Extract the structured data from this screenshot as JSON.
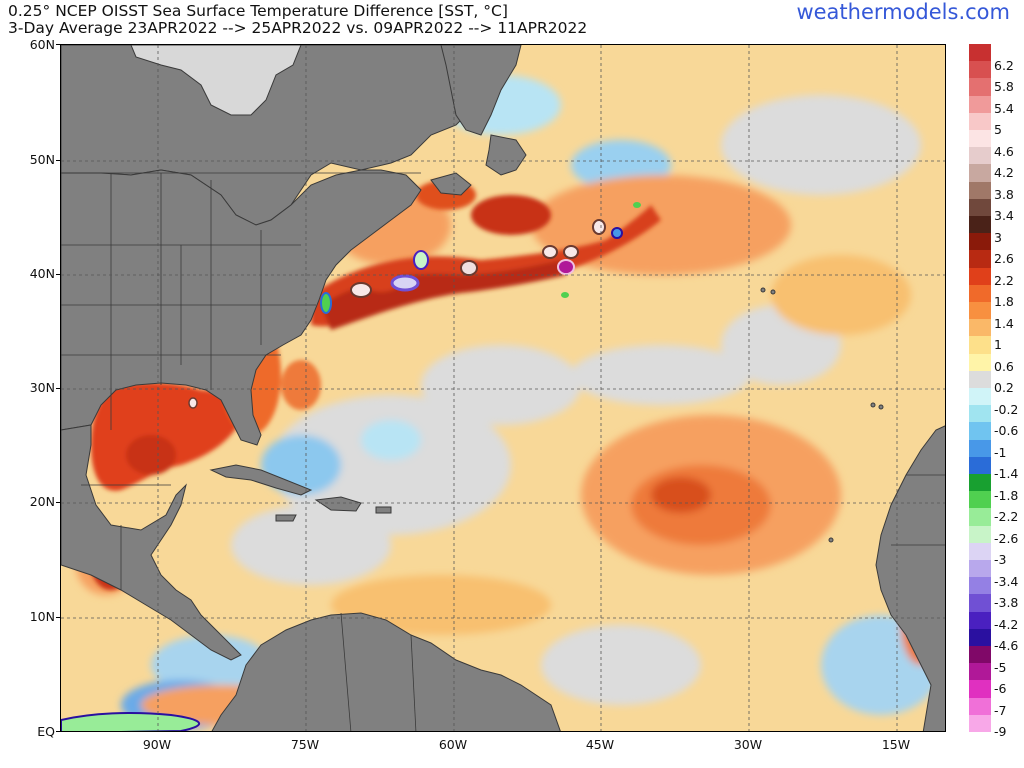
{
  "header": {
    "title_line1": "0.25° NCEP OISST Sea Surface Temperature Difference [SST, °C]",
    "title_line2": "3-Day Average 23APR2022 --> 25APR2022  vs. 09APR2022 --> 11APR2022",
    "brand": "weathermodels.com"
  },
  "axes": {
    "lat_labels": [
      "60N",
      "50N",
      "40N",
      "30N",
      "20N",
      "10N",
      "EQ"
    ],
    "lon_labels": [
      "90W",
      "75W",
      "60W",
      "45W",
      "30W",
      "15W"
    ]
  },
  "colors": {
    "land": "#808080",
    "land_border": "#3a3a3a",
    "neutral": "#dcdcdc",
    "grid": "#555555",
    "brand": "#3558d8"
  },
  "colorbar": {
    "labels": [
      "6.2",
      "5.8",
      "5.4",
      "5",
      "4.6",
      "4.2",
      "3.8",
      "3.4",
      "3",
      "2.6",
      "2.2",
      "1.8",
      "1.4",
      "1",
      "0.6",
      "0.2",
      "-0.2",
      "-0.6",
      "-1",
      "-1.4",
      "-1.8",
      "-2.2",
      "-2.6",
      "-3",
      "-3.4",
      "-3.8",
      "-4.2",
      "-4.6",
      "-5",
      "-6",
      "-7",
      "-9"
    ],
    "colors": [
      "#c83030",
      "#d85050",
      "#e47070",
      "#f09a9a",
      "#f8c8c8",
      "#fce4e4",
      "#e6cccc",
      "#c8a8a0",
      "#a07868",
      "#70483c",
      "#4a2218",
      "#8a1a0a",
      "#b82a12",
      "#e0401a",
      "#f06a2a",
      "#f89040",
      "#fab868",
      "#fde08a",
      "#fff4a8",
      "#dcdcdc",
      "#d0f4f8",
      "#a0e4f0",
      "#70c4f0",
      "#4898e8",
      "#2a6cd8",
      "#18a030",
      "#50d050",
      "#98ec98",
      "#c8f4c8",
      "#dcd4f4",
      "#b8a8ec",
      "#9480e4",
      "#7050d4",
      "#4a20c0",
      "#2a10a0",
      "#800868",
      "#b01898",
      "#e030c0",
      "#f070d8",
      "#f8a8e8"
    ]
  }
}
